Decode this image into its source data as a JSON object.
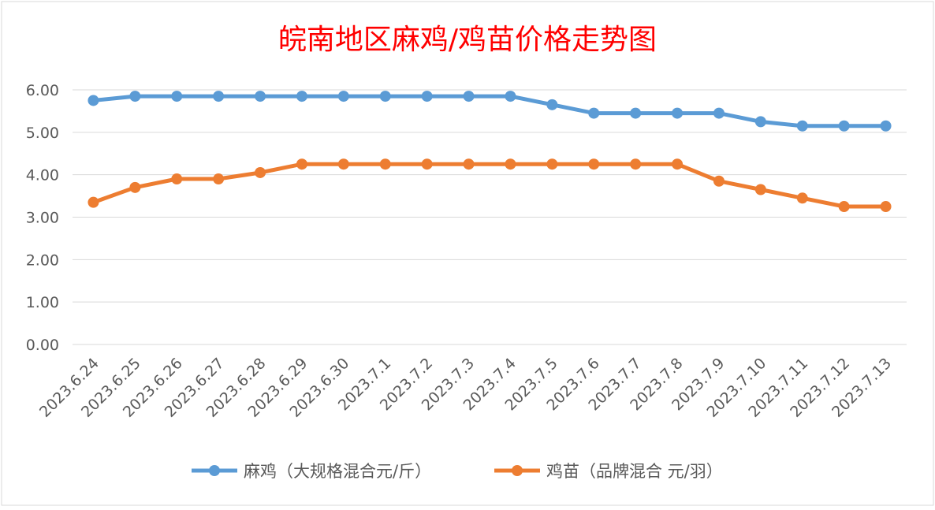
{
  "chart_data": {
    "type": "line",
    "title": "皖南地区麻鸡/鸡苗价格走势图",
    "categories": [
      "2023.6.24",
      "2023.6.25",
      "2023.6.26",
      "2023.6.27",
      "2023.6.28",
      "2023.6.29",
      "2023.6.30",
      "2023.7.1",
      "2023.7.2",
      "2023.7.3",
      "2023.7.4",
      "2023.7.5",
      "2023.7.6",
      "2023.7.7",
      "2023.7.8",
      "2023.7.9",
      "2023.7.10",
      "2023.7.11",
      "2023.7.12",
      "2023.7.13"
    ],
    "series": [
      {
        "name": "麻鸡（大规格混合元/斤）",
        "color": "#5b9bd5",
        "values": [
          5.75,
          5.85,
          5.85,
          5.85,
          5.85,
          5.85,
          5.85,
          5.85,
          5.85,
          5.85,
          5.85,
          5.65,
          5.45,
          5.45,
          5.45,
          5.45,
          5.25,
          5.15,
          5.15,
          5.15
        ]
      },
      {
        "name": "鸡苗（品牌混合 元/羽）",
        "color": "#ed7d31",
        "values": [
          3.35,
          3.7,
          3.9,
          3.9,
          4.05,
          4.25,
          4.25,
          4.25,
          4.25,
          4.25,
          4.25,
          4.25,
          4.25,
          4.25,
          4.25,
          3.85,
          3.65,
          3.45,
          3.25,
          3.25
        ]
      }
    ],
    "ylim": [
      0,
      6
    ],
    "yticks": [
      "0.00",
      "1.00",
      "2.00",
      "3.00",
      "4.00",
      "5.00",
      "6.00"
    ],
    "xlabel": "",
    "ylabel": "",
    "grid": true,
    "legend": "bottom",
    "title_color": "#ff0000"
  }
}
